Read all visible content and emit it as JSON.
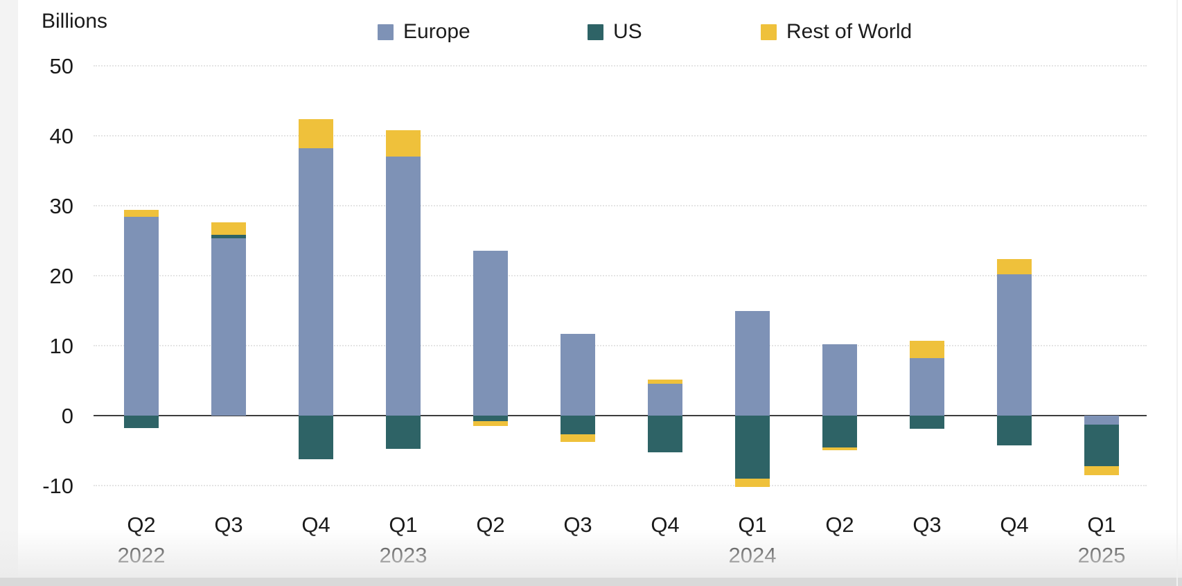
{
  "chart_data": {
    "type": "bar",
    "stacked": true,
    "unit_label": "Billions",
    "xlabel": "",
    "ylabel": "Billions",
    "categories": [
      "Q2",
      "Q3",
      "Q4",
      "Q1",
      "Q2",
      "Q3",
      "Q4",
      "Q1",
      "Q2",
      "Q3",
      "Q4",
      "Q1"
    ],
    "year_labels": {
      "0": "2022",
      "3": "2023",
      "7": "2024",
      "11": "2025"
    },
    "series": [
      {
        "name": "Europe",
        "color": "#7E92B6",
        "values": [
          28.4,
          25.3,
          38.2,
          37.0,
          23.6,
          11.7,
          4.6,
          15.0,
          10.2,
          8.2,
          20.2,
          -1.3
        ]
      },
      {
        "name": "US",
        "color": "#2E6366",
        "values": [
          -1.8,
          0.5,
          -6.2,
          -4.8,
          -0.8,
          -2.7,
          -5.2,
          -9.0,
          -4.6,
          -1.9,
          -4.3,
          -5.9
        ]
      },
      {
        "name": "Rest of World",
        "color": "#EFC13B",
        "values": [
          1.0,
          1.8,
          4.2,
          3.8,
          -0.7,
          -1.1,
          0.5,
          -1.2,
          -0.4,
          2.5,
          2.2,
          -1.3
        ]
      }
    ],
    "yticks": [
      50,
      40,
      30,
      20,
      10,
      0,
      -10
    ],
    "ylim": [
      -13,
      52
    ],
    "legend_position": "top",
    "grid": "horizontal-dotted",
    "colors": {
      "grid": "#e4e4e4",
      "zero_line": "#3d3d3d",
      "text": "#1a1a1a"
    }
  }
}
